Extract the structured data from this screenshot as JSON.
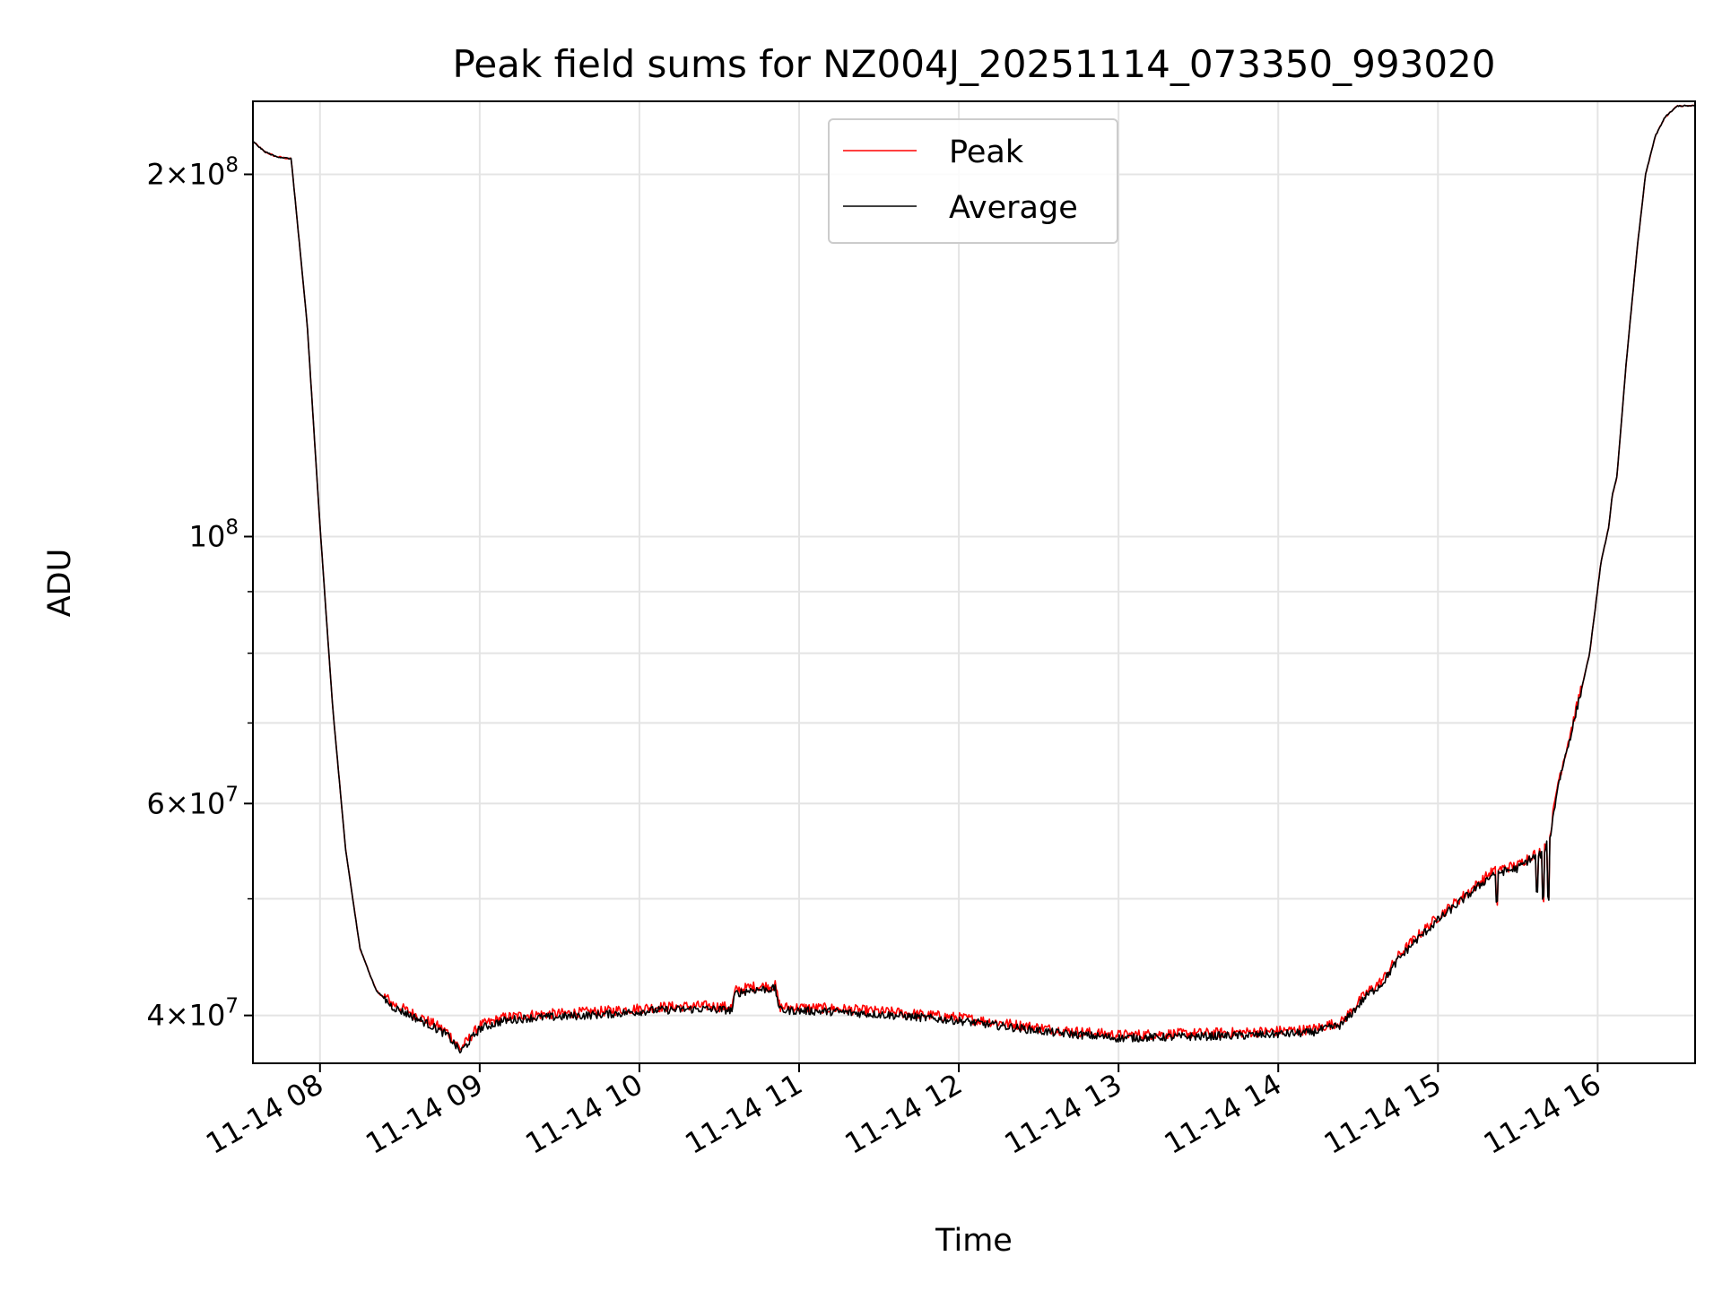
{
  "chart_data": {
    "type": "line",
    "title": "Peak field sums for NZ004J_20251114_073350_993020",
    "xlabel": "Time",
    "ylabel": "ADU",
    "yscale": "log",
    "grid": true,
    "legend_position": "upper-center",
    "xlim_hours": [
      7.58,
      16.61
    ],
    "ylim": [
      36500000,
      230000000
    ],
    "x_ticks": [
      {
        "hour": 8,
        "label": "11-14 08"
      },
      {
        "hour": 9,
        "label": "11-14 09"
      },
      {
        "hour": 10,
        "label": "11-14 10"
      },
      {
        "hour": 11,
        "label": "11-14 11"
      },
      {
        "hour": 12,
        "label": "11-14 12"
      },
      {
        "hour": 13,
        "label": "11-14 13"
      },
      {
        "hour": 14,
        "label": "11-14 14"
      },
      {
        "hour": 15,
        "label": "11-14 15"
      },
      {
        "hour": 16,
        "label": "11-14 16"
      }
    ],
    "y_major_ticks": [
      {
        "value": 40000000,
        "coef": "4",
        "exp": "7"
      },
      {
        "value": 60000000,
        "coef": "6",
        "exp": "7"
      },
      {
        "value": 100000000,
        "coef": "",
        "exp": "8"
      },
      {
        "value": 200000000,
        "coef": "2",
        "exp": "8"
      }
    ],
    "y_minor_ticks": [
      50000000,
      70000000,
      80000000,
      90000000
    ],
    "series": [
      {
        "name": "Peak",
        "color": "#ff0000",
        "noise": 0.01
      },
      {
        "name": "Average",
        "color": "#000000",
        "noise": 0.008
      }
    ],
    "profile": {
      "x": [
        7.58,
        7.65,
        7.72,
        7.82,
        7.92,
        8.0,
        8.08,
        8.16,
        8.25,
        8.35,
        8.45,
        8.55,
        8.7,
        8.8,
        8.88,
        9.0,
        9.15,
        9.3,
        9.5,
        9.8,
        10.1,
        10.4,
        10.58,
        10.6,
        10.7,
        10.85,
        10.88,
        11.2,
        11.6,
        12.0,
        12.4,
        12.6,
        12.8,
        13.0,
        13.4,
        13.8,
        14.2,
        14.4,
        14.55,
        14.65,
        14.75,
        14.85,
        15.0,
        15.2,
        15.35,
        15.5,
        15.58,
        15.65,
        15.7,
        15.75,
        15.85,
        15.95,
        16.02,
        16.07,
        16.09,
        16.12,
        16.18,
        16.25,
        16.3,
        16.36,
        16.42,
        16.5,
        16.61
      ],
      "y": [
        213000000,
        209000000,
        207000000,
        206000000,
        150000000,
        102000000,
        72000000,
        55000000,
        45500000,
        42000000,
        40700000,
        40100000,
        39200000,
        38500000,
        37300000,
        39000000,
        39600000,
        39800000,
        39900000,
        40100000,
        40400000,
        40500000,
        40400000,
        41700000,
        42000000,
        42100000,
        40400000,
        40300000,
        40000000,
        39600000,
        39000000,
        38700000,
        38500000,
        38300000,
        38400000,
        38500000,
        38700000,
        39300000,
        41500000,
        42500000,
        44500000,
        46000000,
        48000000,
        50500000,
        52500000,
        53000000,
        54000000,
        54500000,
        56000000,
        62000000,
        70000000,
        80000000,
        95000000,
        102000000,
        108000000,
        112000000,
        140000000,
        175000000,
        200000000,
        215000000,
        223000000,
        228000000,
        228000000
      ]
    },
    "dips": [
      {
        "hour": 15.37,
        "factor": 0.94
      },
      {
        "hour": 15.62,
        "factor": 0.93
      },
      {
        "hour": 15.66,
        "factor": 0.91
      },
      {
        "hour": 15.69,
        "factor": 0.9
      }
    ]
  }
}
